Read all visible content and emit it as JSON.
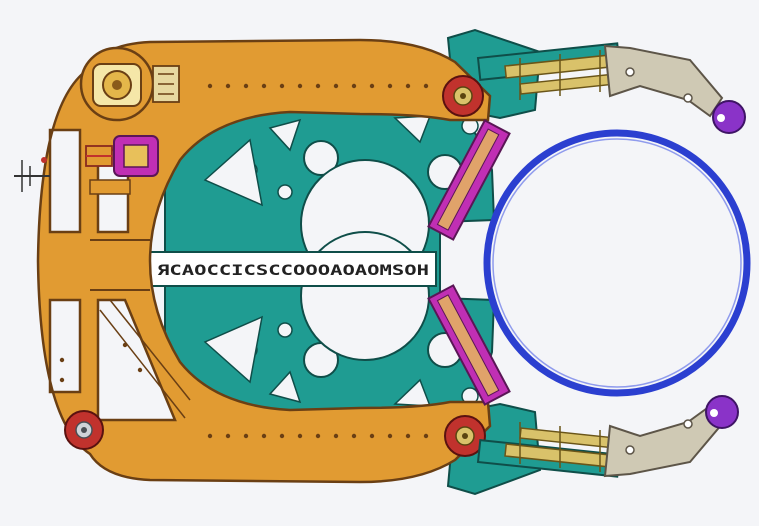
{
  "diagram": {
    "center_label": "ЯCAOCCICSCCOOOAOAOMSOH",
    "colors": {
      "background": "#f4f5f8",
      "frame": "#e19b32",
      "frame_stroke": "#6a3f14",
      "plate": "#1f9c92",
      "plate_stroke": "#0f4e49",
      "pad": "#c02fb4",
      "ring": "#2b3fd0",
      "arm": "#cfc9b4",
      "arm_stroke": "#5d5548",
      "pivot": "#c1322d",
      "roller": "#8a33c8",
      "rail": "#d9c26a"
    }
  }
}
